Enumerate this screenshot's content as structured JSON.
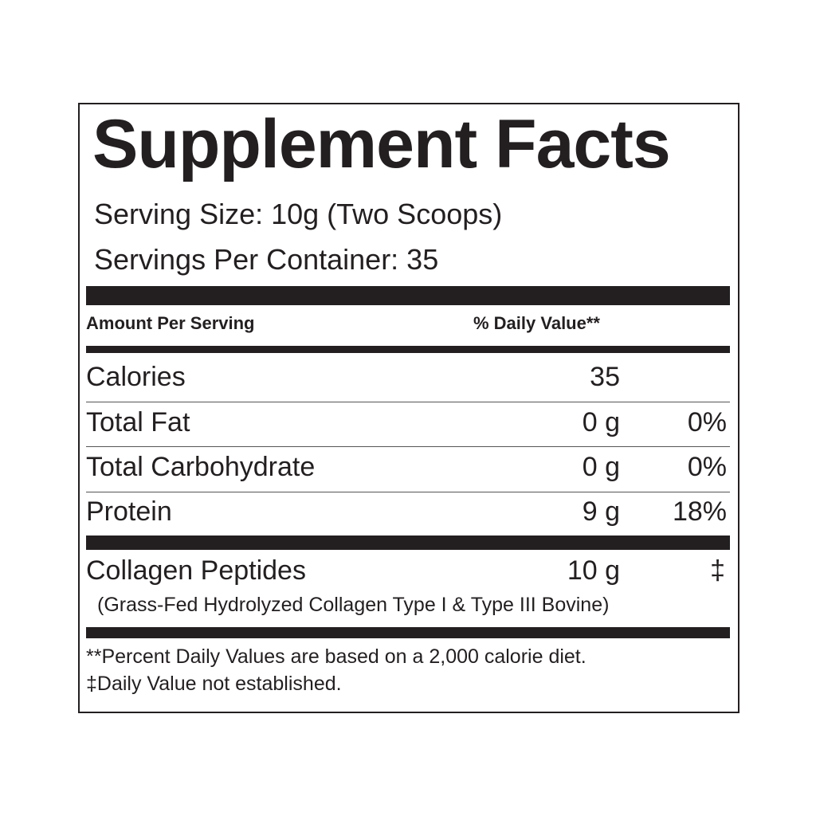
{
  "title": "Supplement Facts",
  "serving_size": "Serving Size: 10g (Two Scoops)",
  "servings_per_container": "Servings Per Container: 35",
  "header": {
    "amount": "Amount Per Serving",
    "daily_value": "% Daily Value**"
  },
  "rows": [
    {
      "name": "Calories",
      "amount": "35",
      "dv": ""
    },
    {
      "name": "Total Fat",
      "amount": "0 g",
      "dv": "0%"
    },
    {
      "name": "Total Carbohydrate",
      "amount": "0 g",
      "dv": "0%"
    },
    {
      "name": "Protein",
      "amount": "9 g",
      "dv": "18%"
    }
  ],
  "collagen": {
    "name": "Collagen Peptides",
    "amount": "10 g",
    "dv": "‡",
    "detail": "(Grass-Fed Hydrolyzed Collagen Type I & Type III Bovine)"
  },
  "footnotes": [
    "**Percent Daily Values are based on a 2,000 calorie diet.",
    "‡Daily Value not established."
  ]
}
